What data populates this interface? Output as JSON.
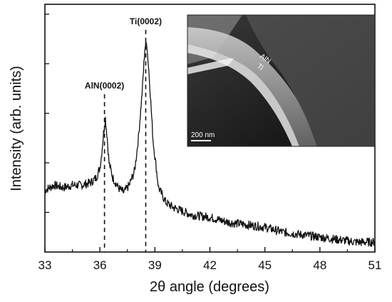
{
  "chart_data": {
    "type": "line",
    "title": "",
    "xlabel": "2θ angle (degrees)",
    "ylabel": "Intensity (arb. units)",
    "xlim": [
      33,
      51
    ],
    "ylim": [
      0,
      1
    ],
    "xticks": [
      33,
      36,
      39,
      42,
      45,
      48,
      51
    ],
    "xtick_labels": [
      "33",
      "36",
      "39",
      "42",
      "45",
      "48",
      "51"
    ],
    "yticks_labeled": false,
    "grid": false,
    "legend": "none",
    "line_color": "#111111",
    "series": [
      {
        "x": [
          33.0,
          33.5,
          34.0,
          34.5,
          35.0,
          35.5,
          35.8,
          36.0,
          36.1,
          36.2,
          36.3,
          36.4,
          36.5,
          36.7,
          37.0,
          37.3,
          37.6,
          37.9,
          38.1,
          38.3,
          38.45,
          38.55,
          38.7,
          38.9,
          39.2,
          39.6,
          40.0,
          41.0,
          42.0,
          43.0,
          44.0,
          45.0,
          46.0,
          47.0,
          48.0,
          49.0,
          50.0,
          51.0
        ],
        "y": [
          0.25,
          0.27,
          0.26,
          0.27,
          0.27,
          0.28,
          0.3,
          0.34,
          0.4,
          0.48,
          0.54,
          0.46,
          0.36,
          0.3,
          0.26,
          0.24,
          0.27,
          0.33,
          0.46,
          0.64,
          0.82,
          0.85,
          0.7,
          0.45,
          0.26,
          0.2,
          0.18,
          0.15,
          0.14,
          0.12,
          0.11,
          0.1,
          0.08,
          0.07,
          0.06,
          0.05,
          0.04,
          0.04
        ]
      }
    ],
    "annotations": [
      {
        "label": "AlN(0002)",
        "x": 36.25,
        "label_y": 0.66
      },
      {
        "label": "Ti(0002)",
        "x": 38.5,
        "label_y": 0.92
      }
    ]
  },
  "inset": {
    "scale_label": "200 nm",
    "layer_label_top": "AlN",
    "layer_label_bottom": "Ti"
  }
}
